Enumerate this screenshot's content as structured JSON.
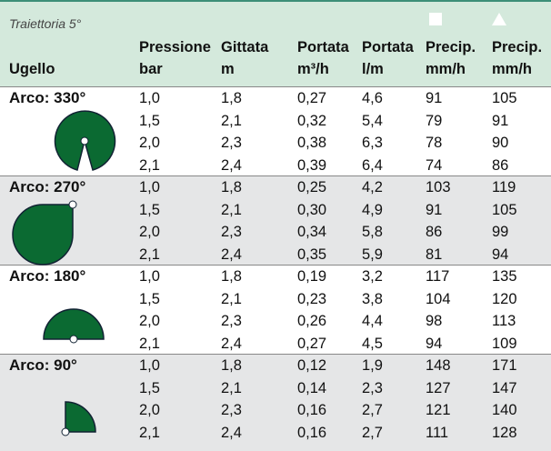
{
  "title": "Traiettoria 5°",
  "nozzle_header": "Ugello",
  "columns": [
    {
      "top": "Pressione",
      "unit": "bar"
    },
    {
      "top": "Gittata",
      "unit": "m"
    },
    {
      "top": "Portata",
      "unit": "m³/h"
    },
    {
      "top": "Portata",
      "unit": "l/m"
    },
    {
      "top": "Precip.",
      "unit": "mm/h"
    },
    {
      "top": "Precip.",
      "unit": "mm/h"
    }
  ],
  "groups": [
    {
      "label": "Arco: 330°",
      "rows": [
        [
          "1,0",
          "1,8",
          "0,27",
          "4,6",
          "91",
          "105"
        ],
        [
          "1,5",
          "2,1",
          "0,32",
          "5,4",
          "79",
          "91"
        ],
        [
          "2,0",
          "2,3",
          "0,38",
          "6,3",
          "78",
          "90"
        ],
        [
          "2,1",
          "2,4",
          "0,39",
          "6,4",
          "74",
          "86"
        ]
      ]
    },
    {
      "label": "Arco: 270°",
      "rows": [
        [
          "1,0",
          "1,8",
          "0,25",
          "4,2",
          "103",
          "119"
        ],
        [
          "1,5",
          "2,1",
          "0,30",
          "4,9",
          "91",
          "105"
        ],
        [
          "2,0",
          "2,3",
          "0,34",
          "5,8",
          "86",
          "99"
        ],
        [
          "2,1",
          "2,4",
          "0,35",
          "5,9",
          "81",
          "94"
        ]
      ]
    },
    {
      "label": "Arco: 180°",
      "rows": [
        [
          "1,0",
          "1,8",
          "0,19",
          "3,2",
          "117",
          "135"
        ],
        [
          "1,5",
          "2,1",
          "0,23",
          "3,8",
          "104",
          "120"
        ],
        [
          "2,0",
          "2,3",
          "0,26",
          "4,4",
          "98",
          "113"
        ],
        [
          "2,1",
          "2,4",
          "0,27",
          "4,5",
          "94",
          "109"
        ]
      ]
    },
    {
      "label": "Arco: 90°",
      "rows": [
        [
          "1,0",
          "1,8",
          "0,12",
          "1,9",
          "148",
          "171"
        ],
        [
          "1,5",
          "2,1",
          "0,14",
          "2,3",
          "127",
          "147"
        ],
        [
          "2,0",
          "2,3",
          "0,16",
          "2,7",
          "121",
          "140"
        ],
        [
          "2,1",
          "2,4",
          "0,16",
          "2,7",
          "111",
          "128"
        ]
      ]
    }
  ]
}
